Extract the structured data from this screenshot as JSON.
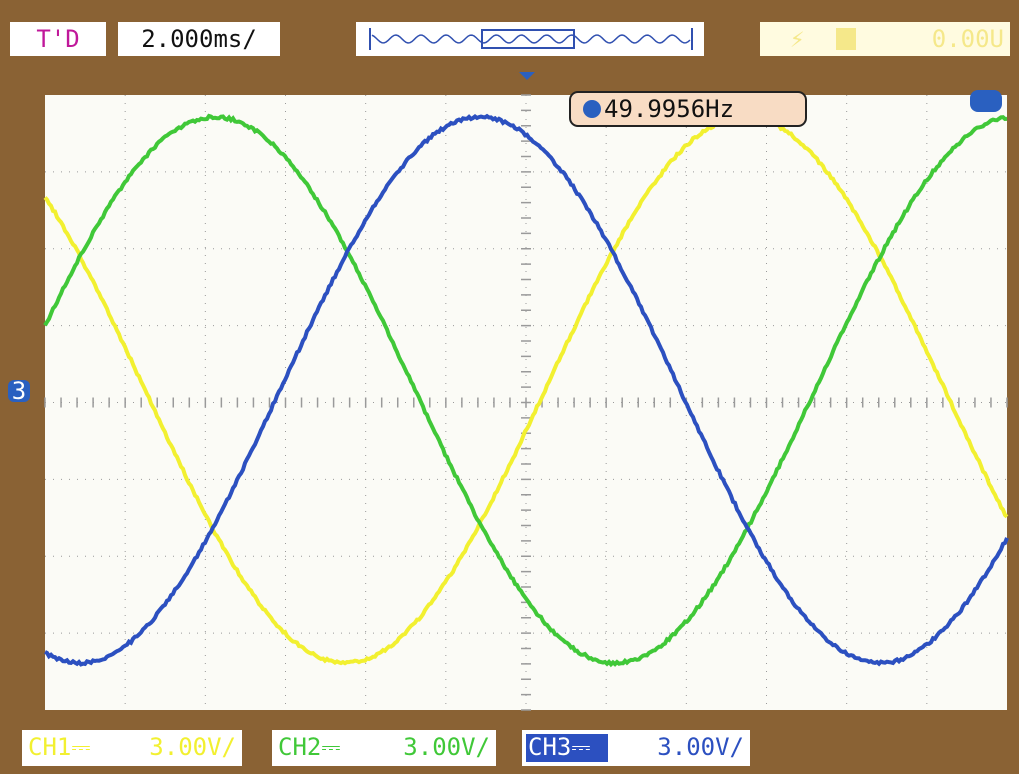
{
  "header": {
    "mode": "T'D",
    "timebase": "2.000ms/",
    "trigger_level": "0.00U"
  },
  "frequency": "49.9956Hz",
  "channel_marker": "3",
  "channels": [
    {
      "label": "CH1⎓",
      "scale": "3.00V/"
    },
    {
      "label": "CH2⎓",
      "scale": "3.00V/"
    },
    {
      "label": "CH3⎓",
      "scale": "3.00V/"
    }
  ]
}
